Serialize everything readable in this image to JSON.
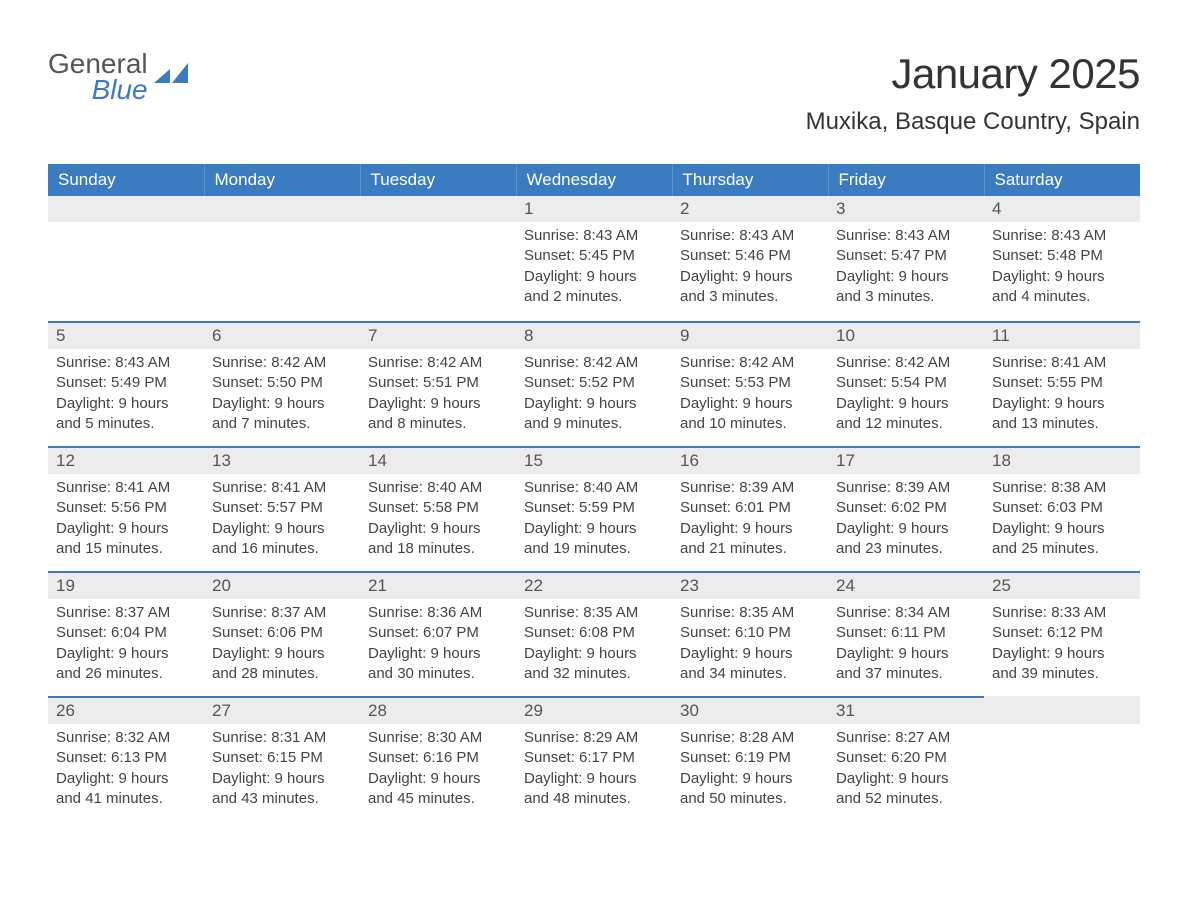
{
  "logo": {
    "word1": "General",
    "word2": "Blue",
    "mark_color": "#3b7bbf",
    "text_color": "#555"
  },
  "title": "January 2025",
  "subtitle": "Muxika, Basque Country, Spain",
  "colors": {
    "header_bg": "#3b7bbf",
    "header_text": "#ffffff",
    "daynum_bg": "#ececec",
    "daynum_border": "#3b7bbf",
    "body_text": "#444",
    "page_bg": "#ffffff"
  },
  "typography": {
    "title_fontsize": 42,
    "subtitle_fontsize": 24,
    "header_fontsize": 17,
    "daynum_fontsize": 17,
    "body_fontsize": 15
  },
  "calendar": {
    "columns": [
      "Sunday",
      "Monday",
      "Tuesday",
      "Wednesday",
      "Thursday",
      "Friday",
      "Saturday"
    ],
    "weeks": [
      [
        null,
        null,
        null,
        {
          "n": "1",
          "sunrise": "8:43 AM",
          "sunset": "5:45 PM",
          "daylight": "9 hours and 2 minutes."
        },
        {
          "n": "2",
          "sunrise": "8:43 AM",
          "sunset": "5:46 PM",
          "daylight": "9 hours and 3 minutes."
        },
        {
          "n": "3",
          "sunrise": "8:43 AM",
          "sunset": "5:47 PM",
          "daylight": "9 hours and 3 minutes."
        },
        {
          "n": "4",
          "sunrise": "8:43 AM",
          "sunset": "5:48 PM",
          "daylight": "9 hours and 4 minutes."
        }
      ],
      [
        {
          "n": "5",
          "sunrise": "8:43 AM",
          "sunset": "5:49 PM",
          "daylight": "9 hours and 5 minutes."
        },
        {
          "n": "6",
          "sunrise": "8:42 AM",
          "sunset": "5:50 PM",
          "daylight": "9 hours and 7 minutes."
        },
        {
          "n": "7",
          "sunrise": "8:42 AM",
          "sunset": "5:51 PM",
          "daylight": "9 hours and 8 minutes."
        },
        {
          "n": "8",
          "sunrise": "8:42 AM",
          "sunset": "5:52 PM",
          "daylight": "9 hours and 9 minutes."
        },
        {
          "n": "9",
          "sunrise": "8:42 AM",
          "sunset": "5:53 PM",
          "daylight": "9 hours and 10 minutes."
        },
        {
          "n": "10",
          "sunrise": "8:42 AM",
          "sunset": "5:54 PM",
          "daylight": "9 hours and 12 minutes."
        },
        {
          "n": "11",
          "sunrise": "8:41 AM",
          "sunset": "5:55 PM",
          "daylight": "9 hours and 13 minutes."
        }
      ],
      [
        {
          "n": "12",
          "sunrise": "8:41 AM",
          "sunset": "5:56 PM",
          "daylight": "9 hours and 15 minutes."
        },
        {
          "n": "13",
          "sunrise": "8:41 AM",
          "sunset": "5:57 PM",
          "daylight": "9 hours and 16 minutes."
        },
        {
          "n": "14",
          "sunrise": "8:40 AM",
          "sunset": "5:58 PM",
          "daylight": "9 hours and 18 minutes."
        },
        {
          "n": "15",
          "sunrise": "8:40 AM",
          "sunset": "5:59 PM",
          "daylight": "9 hours and 19 minutes."
        },
        {
          "n": "16",
          "sunrise": "8:39 AM",
          "sunset": "6:01 PM",
          "daylight": "9 hours and 21 minutes."
        },
        {
          "n": "17",
          "sunrise": "8:39 AM",
          "sunset": "6:02 PM",
          "daylight": "9 hours and 23 minutes."
        },
        {
          "n": "18",
          "sunrise": "8:38 AM",
          "sunset": "6:03 PM",
          "daylight": "9 hours and 25 minutes."
        }
      ],
      [
        {
          "n": "19",
          "sunrise": "8:37 AM",
          "sunset": "6:04 PM",
          "daylight": "9 hours and 26 minutes."
        },
        {
          "n": "20",
          "sunrise": "8:37 AM",
          "sunset": "6:06 PM",
          "daylight": "9 hours and 28 minutes."
        },
        {
          "n": "21",
          "sunrise": "8:36 AM",
          "sunset": "6:07 PM",
          "daylight": "9 hours and 30 minutes."
        },
        {
          "n": "22",
          "sunrise": "8:35 AM",
          "sunset": "6:08 PM",
          "daylight": "9 hours and 32 minutes."
        },
        {
          "n": "23",
          "sunrise": "8:35 AM",
          "sunset": "6:10 PM",
          "daylight": "9 hours and 34 minutes."
        },
        {
          "n": "24",
          "sunrise": "8:34 AM",
          "sunset": "6:11 PM",
          "daylight": "9 hours and 37 minutes."
        },
        {
          "n": "25",
          "sunrise": "8:33 AM",
          "sunset": "6:12 PM",
          "daylight": "9 hours and 39 minutes."
        }
      ],
      [
        {
          "n": "26",
          "sunrise": "8:32 AM",
          "sunset": "6:13 PM",
          "daylight": "9 hours and 41 minutes."
        },
        {
          "n": "27",
          "sunrise": "8:31 AM",
          "sunset": "6:15 PM",
          "daylight": "9 hours and 43 minutes."
        },
        {
          "n": "28",
          "sunrise": "8:30 AM",
          "sunset": "6:16 PM",
          "daylight": "9 hours and 45 minutes."
        },
        {
          "n": "29",
          "sunrise": "8:29 AM",
          "sunset": "6:17 PM",
          "daylight": "9 hours and 48 minutes."
        },
        {
          "n": "30",
          "sunrise": "8:28 AM",
          "sunset": "6:19 PM",
          "daylight": "9 hours and 50 minutes."
        },
        {
          "n": "31",
          "sunrise": "8:27 AM",
          "sunset": "6:20 PM",
          "daylight": "9 hours and 52 minutes."
        },
        null
      ]
    ],
    "labels": {
      "sunrise": "Sunrise:",
      "sunset": "Sunset:",
      "daylight": "Daylight:"
    }
  }
}
